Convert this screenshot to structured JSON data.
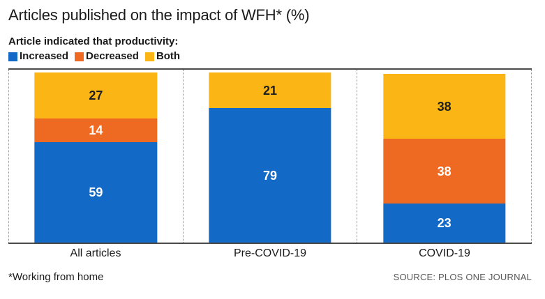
{
  "title": "Articles published on the impact of WFH* (%)",
  "legend": {
    "heading": "Article indicated that productivity:",
    "items": [
      {
        "label": "Increased",
        "color": "#1269c6"
      },
      {
        "label": "Decreased",
        "color": "#ee6a23"
      },
      {
        "label": "Both",
        "color": "#fbb616"
      }
    ]
  },
  "chart_data": {
    "type": "bar",
    "variant": "stacked-percent",
    "title": "Articles published on the impact of WFH* (%)",
    "categories": [
      "All articles",
      "Pre-COVID-19",
      "COVID-19"
    ],
    "series": [
      {
        "name": "Increased",
        "color": "#1269c6",
        "label_color": "#ffffff",
        "values": [
          59,
          79,
          23
        ]
      },
      {
        "name": "Decreased",
        "color": "#ee6a23",
        "label_color": "#ffffff",
        "values": [
          14,
          0,
          38
        ]
      },
      {
        "name": "Both",
        "color": "#fbb616",
        "label_color": "#1f1f1f",
        "values": [
          27,
          21,
          38
        ]
      }
    ],
    "ylim": [
      0,
      100
    ],
    "value_labels": "inside",
    "legend_position": "top-left",
    "grid": "dotted-vertical-separators",
    "axis_line_color": "#4a4a4a"
  },
  "footer": {
    "footnote": "*Working from home",
    "source": "SOURCE: PLOS ONE JOURNAL"
  }
}
